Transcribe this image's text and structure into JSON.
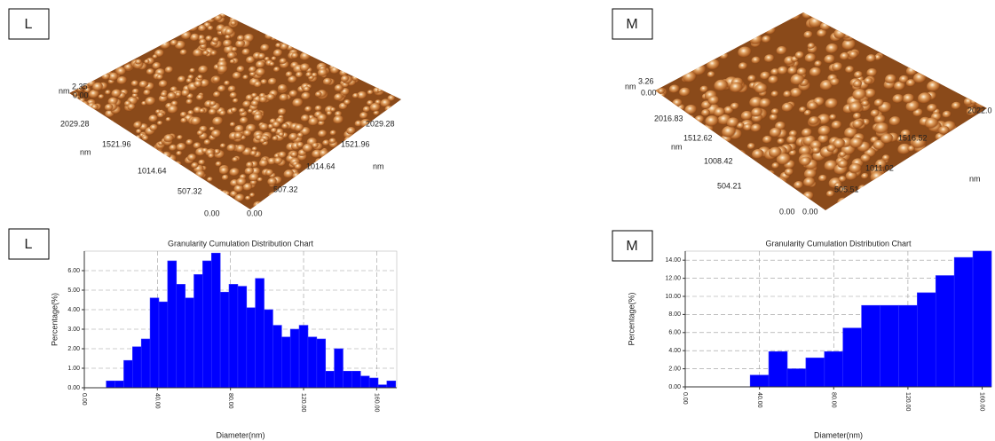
{
  "afm_images": [
    {
      "label": "L",
      "z_unit": "nm",
      "z_max": "2.35",
      "z_min": "0.00",
      "left_axis": {
        "ticks": [
          "2029.28",
          "1521.96",
          "1014.64",
          "507.32",
          "0.00"
        ],
        "unit": "nm"
      },
      "right_axis": {
        "ticks": [
          "0.00",
          "507.32",
          "1014.64",
          "1521.96",
          "2029.28"
        ],
        "unit": "nm"
      }
    },
    {
      "label": "M",
      "z_unit": "nm",
      "z_max": "3.26",
      "z_min": "0.00",
      "left_axis": {
        "ticks": [
          "2016.83",
          "1512.62",
          "1008.42",
          "504.21",
          "0.00"
        ],
        "unit": "nm"
      },
      "right_axis": {
        "ticks": [
          "0.00",
          "505.51",
          "1011.02",
          "1516.52",
          "2022.0"
        ],
        "unit": "nm"
      }
    }
  ],
  "chart_data": [
    {
      "type": "histogram",
      "panel_label": "L",
      "title": "Granularity Cumulation Distribution  Chart",
      "x_label": "Diameter(nm)",
      "y_label": "Percentage(%)",
      "color": "#0000ff",
      "grid": true,
      "bins": [
        12.0,
        16.8,
        21.6,
        26.4,
        31.2,
        36.0,
        40.8,
        45.6,
        50.4,
        55.2,
        60.0,
        64.8,
        69.6,
        74.4,
        79.2,
        84.0,
        88.8,
        93.6,
        98.4,
        103.2,
        108.0,
        112.8,
        117.6,
        122.4,
        127.2,
        132.0,
        136.8,
        141.6,
        146.4,
        151.2,
        156.0,
        160.8,
        165.6,
        170.4
      ],
      "values": [
        0.35,
        0.35,
        1.4,
        2.1,
        2.5,
        4.6,
        4.4,
        6.5,
        5.3,
        4.6,
        5.8,
        6.5,
        6.9,
        4.9,
        5.3,
        5.2,
        4.1,
        5.6,
        4.0,
        3.2,
        2.6,
        3.0,
        3.2,
        2.6,
        2.5,
        0.85,
        2.0,
        0.85,
        0.85,
        0.6,
        0.5,
        0.15,
        0.35
      ],
      "xlim": [
        0,
        171
      ],
      "ylim": [
        0,
        7
      ],
      "xticks": [
        {
          "value": 0,
          "label": "0.00"
        },
        {
          "value": 40,
          "label": "40.00"
        },
        {
          "value": 80,
          "label": "80.00"
        },
        {
          "value": 120,
          "label": "120.00"
        },
        {
          "value": 160,
          "label": "160.00"
        }
      ],
      "yticks": [
        {
          "value": 0,
          "label": "0.00"
        },
        {
          "value": 1,
          "label": "1.00"
        },
        {
          "value": 2,
          "label": "2.00"
        },
        {
          "value": 3,
          "label": "3.00"
        },
        {
          "value": 4,
          "label": "4.00"
        },
        {
          "value": 5,
          "label": "5.00"
        },
        {
          "value": 6,
          "label": "6.00"
        }
      ]
    },
    {
      "type": "histogram",
      "panel_label": "M",
      "title": "Granularity Cumulation Distribution  Chart",
      "x_label": "Diameter(nm)",
      "y_label": "Percentage(%)",
      "color": "#0000ff",
      "grid": true,
      "bins": [
        35,
        45,
        55,
        65,
        75,
        85,
        95,
        105,
        115,
        125,
        135,
        145,
        155,
        165
      ],
      "values": [
        1.3,
        3.9,
        2.0,
        3.2,
        3.9,
        6.5,
        9.0,
        9.0,
        9.0,
        10.4,
        12.3,
        14.3,
        15.0
      ],
      "xlim": [
        0,
        165
      ],
      "ylim": [
        0,
        15
      ],
      "xticks": [
        {
          "value": 0,
          "label": "0.00"
        },
        {
          "value": 40,
          "label": "40.00"
        },
        {
          "value": 80,
          "label": "80.00"
        },
        {
          "value": 120,
          "label": "120.00"
        },
        {
          "value": 160,
          "label": "160.00"
        }
      ],
      "yticks": [
        {
          "value": 0,
          "label": "0.00"
        },
        {
          "value": 2,
          "label": "2.00"
        },
        {
          "value": 4,
          "label": "4.00"
        },
        {
          "value": 6,
          "label": "6.00"
        },
        {
          "value": 8,
          "label": "8.00"
        },
        {
          "value": 10,
          "label": "10.00"
        },
        {
          "value": 12,
          "label": "12.00"
        },
        {
          "value": 14,
          "label": "14.00"
        }
      ]
    }
  ]
}
